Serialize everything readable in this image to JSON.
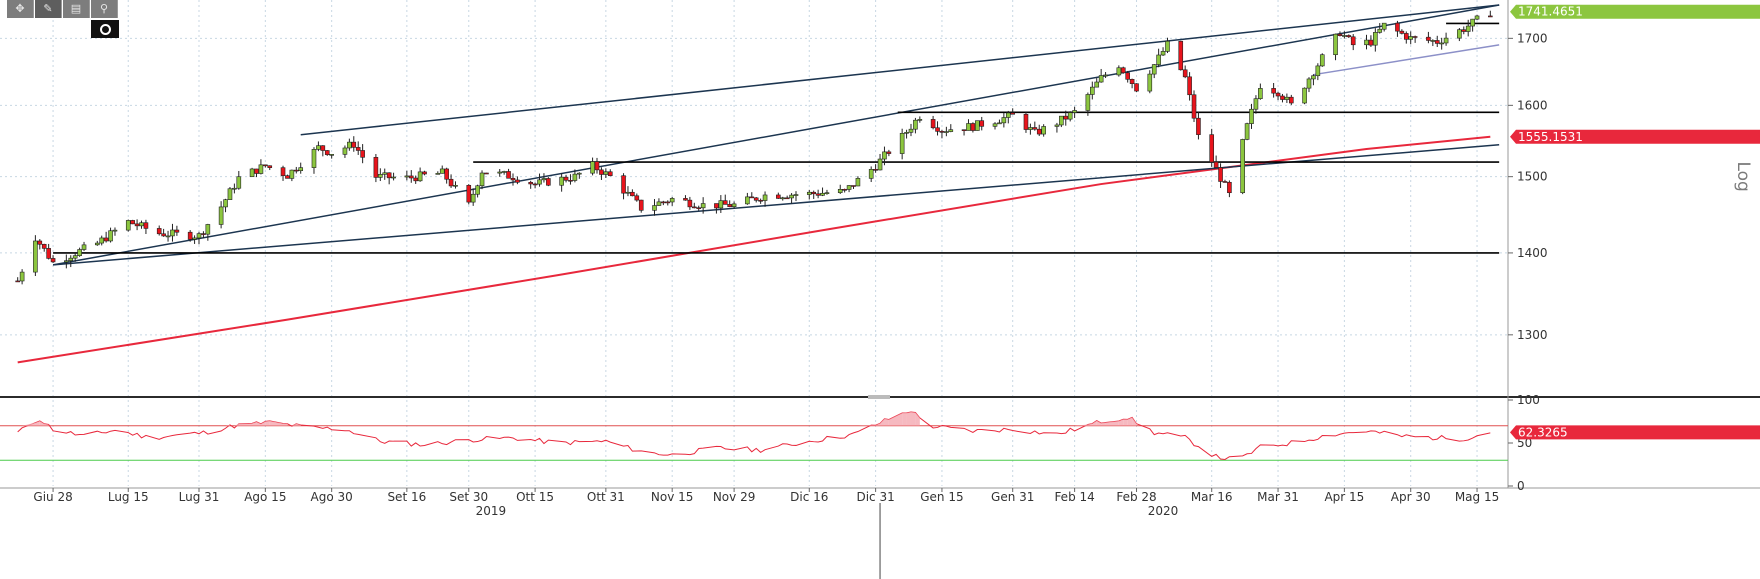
{
  "toolbar": {
    "tools": [
      {
        "name": "crosshair-tool",
        "icon": "crosshair-icon",
        "glyph": "✥",
        "active": false
      },
      {
        "name": "draw-line-tool",
        "icon": "pencil-icon",
        "glyph": "✎",
        "active": true
      },
      {
        "name": "notes-tool",
        "icon": "notes-icon",
        "glyph": "▤",
        "active": false
      },
      {
        "name": "zoom-tool",
        "icon": "magnifier-icon",
        "glyph": "⚲",
        "active": false
      }
    ],
    "settings_icon": "gear-icon"
  },
  "colors": {
    "up_candle": "#8cc63f",
    "down_candle": "#e8141c",
    "moving_average": "#e8283c",
    "trendline": "#1c3550",
    "support_line": "#000000",
    "rsi_line": "#e8283c",
    "rsi_upper": "#e05050",
    "rsi_lower": "#4ccc4c",
    "last_price_bg": "#8cc63f",
    "ma_label_bg": "#e8283c"
  },
  "chart_data": {
    "type": "candlestick",
    "scale": "log",
    "scale_label": "Log",
    "price_axis": {
      "ylim": [
        1230,
        1760
      ],
      "ticks": [
        1300,
        1400,
        1500,
        1600,
        1700
      ]
    },
    "x_labels": [
      "Giu 28",
      "Lug 15",
      "Lug 31",
      "Ago 15",
      "Ago 30",
      "Set 16",
      "Set 30",
      "Ott 15",
      "Ott 31",
      "Nov 15",
      "Nov 29",
      "Dic 16",
      "Dic 31",
      "Gen 15",
      "Gen 31",
      "Feb 14",
      "Feb 28",
      "Mar 16",
      "Mar 31",
      "Apr 15",
      "Apr 30",
      "Mag 15"
    ],
    "year_labels": [
      "2019",
      "2020"
    ],
    "last_price_label": "1741.4651",
    "ma_label": "1555.1531",
    "series": [
      {
        "name": "price",
        "type": "candlestick",
        "anchors": [
          [
            "2019-06-20",
            1365
          ],
          [
            "2019-06-24",
            1420
          ],
          [
            "2019-06-28",
            1388
          ],
          [
            "2019-07-03",
            1400
          ],
          [
            "2019-07-08",
            1412
          ],
          [
            "2019-07-12",
            1428
          ],
          [
            "2019-07-15",
            1440
          ],
          [
            "2019-07-22",
            1425
          ],
          [
            "2019-07-31",
            1422
          ],
          [
            "2019-08-05",
            1460
          ],
          [
            "2019-08-09",
            1498
          ],
          [
            "2019-08-15",
            1515
          ],
          [
            "2019-08-20",
            1502
          ],
          [
            "2019-08-27",
            1540
          ],
          [
            "2019-08-30",
            1533
          ],
          [
            "2019-09-04",
            1545
          ],
          [
            "2019-09-09",
            1500
          ],
          [
            "2019-09-16",
            1498
          ],
          [
            "2019-09-24",
            1505
          ],
          [
            "2019-09-30",
            1462
          ],
          [
            "2019-10-03",
            1508
          ],
          [
            "2019-10-10",
            1500
          ],
          [
            "2019-10-15",
            1490
          ],
          [
            "2019-10-24",
            1500
          ],
          [
            "2019-10-28",
            1515
          ],
          [
            "2019-11-01",
            1500
          ],
          [
            "2019-11-08",
            1458
          ],
          [
            "2019-11-15",
            1470
          ],
          [
            "2019-11-22",
            1462
          ],
          [
            "2019-11-29",
            1462
          ],
          [
            "2019-12-06",
            1475
          ],
          [
            "2019-12-16",
            1477
          ],
          [
            "2019-12-24",
            1480
          ],
          [
            "2019-12-31",
            1515
          ],
          [
            "2020-01-06",
            1555
          ],
          [
            "2020-01-10",
            1585
          ],
          [
            "2020-01-15",
            1565
          ],
          [
            "2020-01-22",
            1570
          ],
          [
            "2020-01-31",
            1585
          ],
          [
            "2020-02-05",
            1560
          ],
          [
            "2020-02-10",
            1575
          ],
          [
            "2020-02-14",
            1590
          ],
          [
            "2020-02-20",
            1640
          ],
          [
            "2020-02-24",
            1660
          ],
          [
            "2020-02-28",
            1625
          ],
          [
            "2020-03-03",
            1660
          ],
          [
            "2020-03-06",
            1690
          ],
          [
            "2020-03-10",
            1640
          ],
          [
            "2020-03-13",
            1555
          ],
          [
            "2020-03-17",
            1510
          ],
          [
            "2020-03-20",
            1475
          ],
          [
            "2020-03-24",
            1570
          ],
          [
            "2020-03-27",
            1630
          ],
          [
            "2020-03-31",
            1620
          ],
          [
            "2020-04-03",
            1600
          ],
          [
            "2020-04-08",
            1650
          ],
          [
            "2020-04-14",
            1710
          ],
          [
            "2020-04-17",
            1690
          ],
          [
            "2020-04-21",
            1695
          ],
          [
            "2020-04-24",
            1720
          ],
          [
            "2020-04-30",
            1700
          ],
          [
            "2020-05-06",
            1695
          ],
          [
            "2020-05-12",
            1715
          ],
          [
            "2020-05-18",
            1741.4651
          ]
        ]
      },
      {
        "name": "moving_average",
        "type": "line",
        "points": [
          [
            "2019-06-20",
            1268
          ],
          [
            "2019-08-20",
            1318
          ],
          [
            "2019-10-20",
            1372
          ],
          [
            "2019-12-20",
            1430
          ],
          [
            "2020-02-20",
            1490
          ],
          [
            "2020-04-20",
            1538
          ],
          [
            "2020-05-18",
            1555.1531
          ]
        ]
      }
    ],
    "trendlines": [
      {
        "from": [
          "2019-06-28",
          1385
        ],
        "to": [
          "2020-05-20",
          1752
        ]
      },
      {
        "from": [
          "2019-08-23",
          1558
        ],
        "to": [
          "2020-05-20",
          1752
        ]
      },
      {
        "from": [
          "2019-06-28",
          1385
        ],
        "to": [
          "2020-05-20",
          1544
        ]
      },
      {
        "from": [
          "2020-04-08",
          1645
        ],
        "to": [
          "2020-05-20",
          1690
        ]
      },
      {
        "from": [
          "2019-06-28",
          1400
        ],
        "to": [
          "2020-05-20",
          1400
        ]
      },
      {
        "from": [
          "2019-10-01",
          1520
        ],
        "to": [
          "2020-05-20",
          1520
        ]
      },
      {
        "from": [
          "2020-01-05",
          1590
        ],
        "to": [
          "2020-05-20",
          1590
        ]
      },
      {
        "from": [
          "2020-05-08",
          1723
        ],
        "to": [
          "2020-05-20",
          1723
        ]
      }
    ],
    "rsi": {
      "ylim": [
        0,
        100
      ],
      "ticks": [
        0,
        50,
        100
      ],
      "upper": 70,
      "lower": 30,
      "last_label": "62.3265",
      "anchors": [
        [
          "2019-06-20",
          62
        ],
        [
          "2019-06-25",
          78
        ],
        [
          "2019-06-28",
          66
        ],
        [
          "2019-07-05",
          58
        ],
        [
          "2019-07-12",
          65
        ],
        [
          "2019-07-20",
          56
        ],
        [
          "2019-08-01",
          62
        ],
        [
          "2019-08-08",
          70
        ],
        [
          "2019-08-16",
          74
        ],
        [
          "2019-08-25",
          68
        ],
        [
          "2019-09-02",
          66
        ],
        [
          "2019-09-10",
          52
        ],
        [
          "2019-09-20",
          48
        ],
        [
          "2019-10-01",
          54
        ],
        [
          "2019-10-10",
          56
        ],
        [
          "2019-10-20",
          50
        ],
        [
          "2019-10-31",
          52
        ],
        [
          "2019-11-08",
          40
        ],
        [
          "2019-11-15",
          36
        ],
        [
          "2019-11-25",
          44
        ],
        [
          "2019-12-05",
          42
        ],
        [
          "2019-12-16",
          52
        ],
        [
          "2019-12-26",
          60
        ],
        [
          "2020-01-03",
          78
        ],
        [
          "2020-01-08",
          88
        ],
        [
          "2020-01-12",
          70
        ],
        [
          "2020-01-22",
          64
        ],
        [
          "2020-01-31",
          66
        ],
        [
          "2020-02-10",
          60
        ],
        [
          "2020-02-20",
          75
        ],
        [
          "2020-02-26",
          80
        ],
        [
          "2020-03-03",
          62
        ],
        [
          "2020-03-10",
          56
        ],
        [
          "2020-03-17",
          34
        ],
        [
          "2020-03-22",
          30
        ],
        [
          "2020-03-27",
          45
        ],
        [
          "2020-04-03",
          50
        ],
        [
          "2020-04-12",
          60
        ],
        [
          "2020-04-20",
          64
        ],
        [
          "2020-04-28",
          58
        ],
        [
          "2020-05-06",
          56
        ],
        [
          "2020-05-12",
          55
        ],
        [
          "2020-05-18",
          62.3265
        ]
      ]
    },
    "grid": true,
    "legend": "none"
  }
}
